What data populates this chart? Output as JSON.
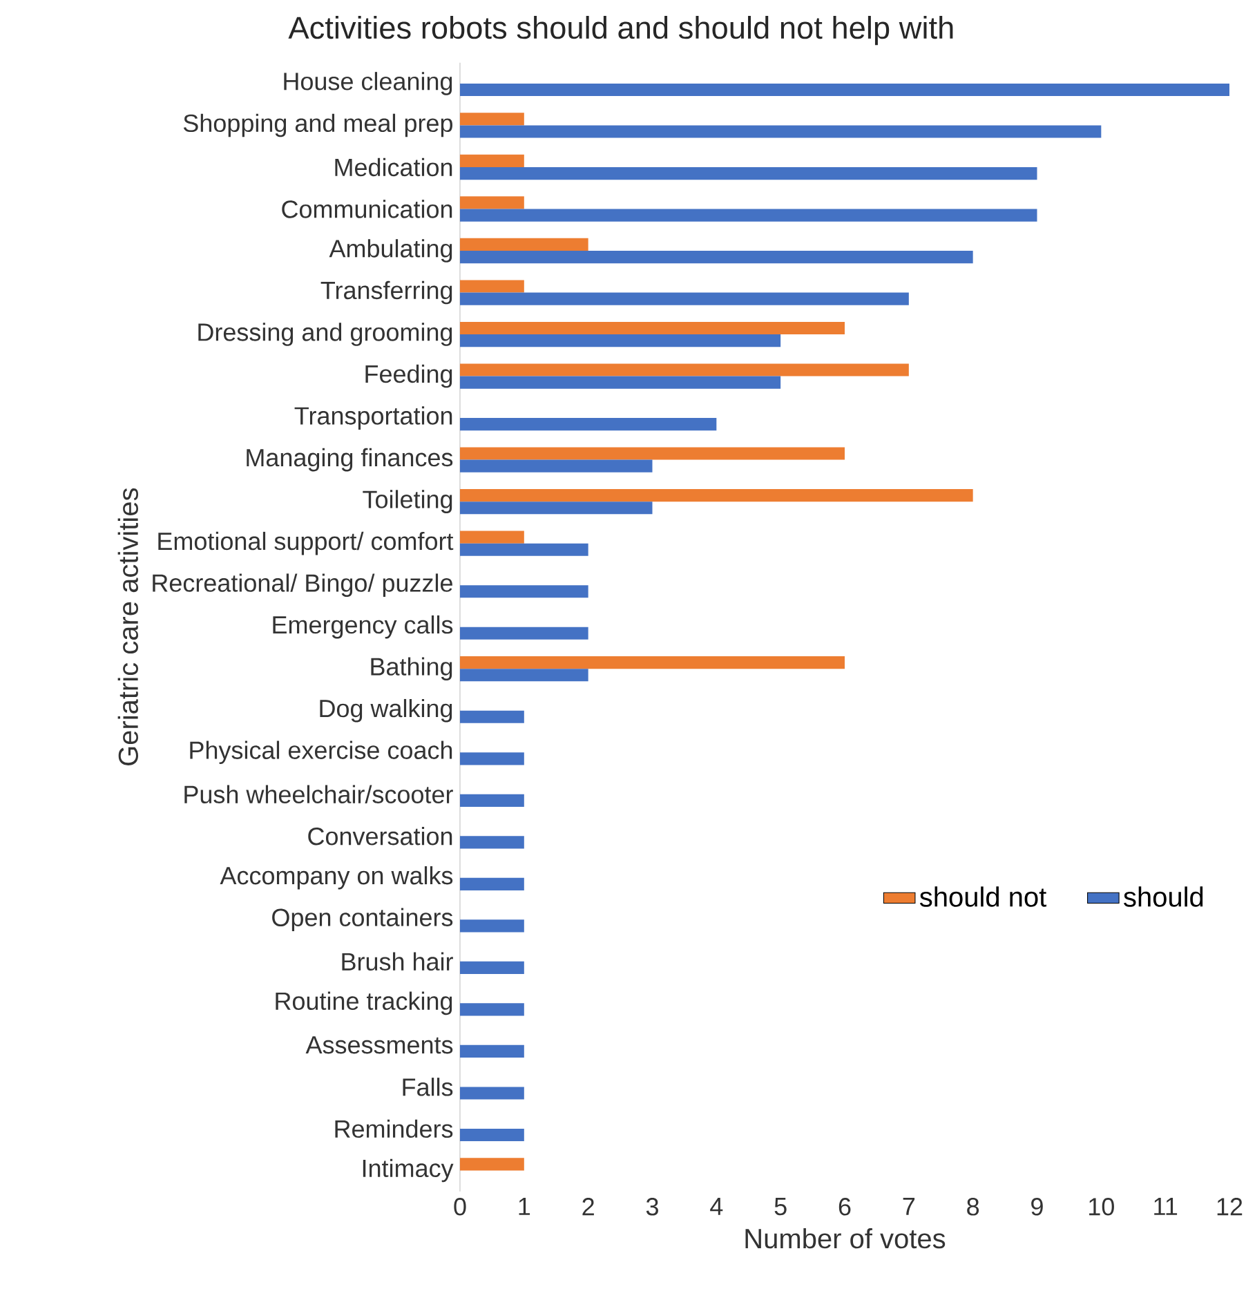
{
  "chart_data": {
    "type": "bar",
    "orientation": "horizontal",
    "title": "Activities robots should and should not help with",
    "xlabel": "Number of votes",
    "ylabel": "Geriatric care activities",
    "categories": [
      "House cleaning",
      "Shopping and meal prep",
      "Medication",
      "Communication",
      "Ambulating",
      "Transferring",
      "Dressing and grooming",
      "Feeding",
      "Transportation",
      "Managing finances",
      "Toileting",
      "Emotional support/ comfort",
      "Recreational/ Bingo/ puzzle",
      "Emergency calls",
      "Bathing",
      "Dog walking",
      "Physical exercise coach",
      "Push wheelchair/scooter",
      "Conversation",
      "Accompany on walks",
      "Open containers",
      "Brush hair",
      "Routine tracking",
      "Assessments",
      "Falls",
      "Reminders",
      "Intimacy"
    ],
    "series": [
      {
        "name": "should not",
        "color": "#ed7d31",
        "values": [
          null,
          1,
          1,
          1,
          2,
          1,
          6,
          7,
          null,
          6,
          8,
          1,
          null,
          null,
          6,
          null,
          null,
          null,
          null,
          null,
          null,
          null,
          null,
          null,
          null,
          null,
          1
        ]
      },
      {
        "name": "should",
        "color": "#4472c4",
        "values": [
          12,
          10,
          9,
          9,
          8,
          7,
          5,
          5,
          4,
          3,
          3,
          2,
          2,
          2,
          2,
          1,
          1,
          1,
          1,
          1,
          1,
          1,
          1,
          1,
          1,
          1,
          null
        ]
      }
    ],
    "xlim": [
      0,
      12
    ],
    "xticks": [
      0,
      1,
      2,
      3,
      4,
      5,
      6,
      7,
      8,
      9,
      10,
      11,
      12
    ],
    "legend": "bottom right"
  }
}
